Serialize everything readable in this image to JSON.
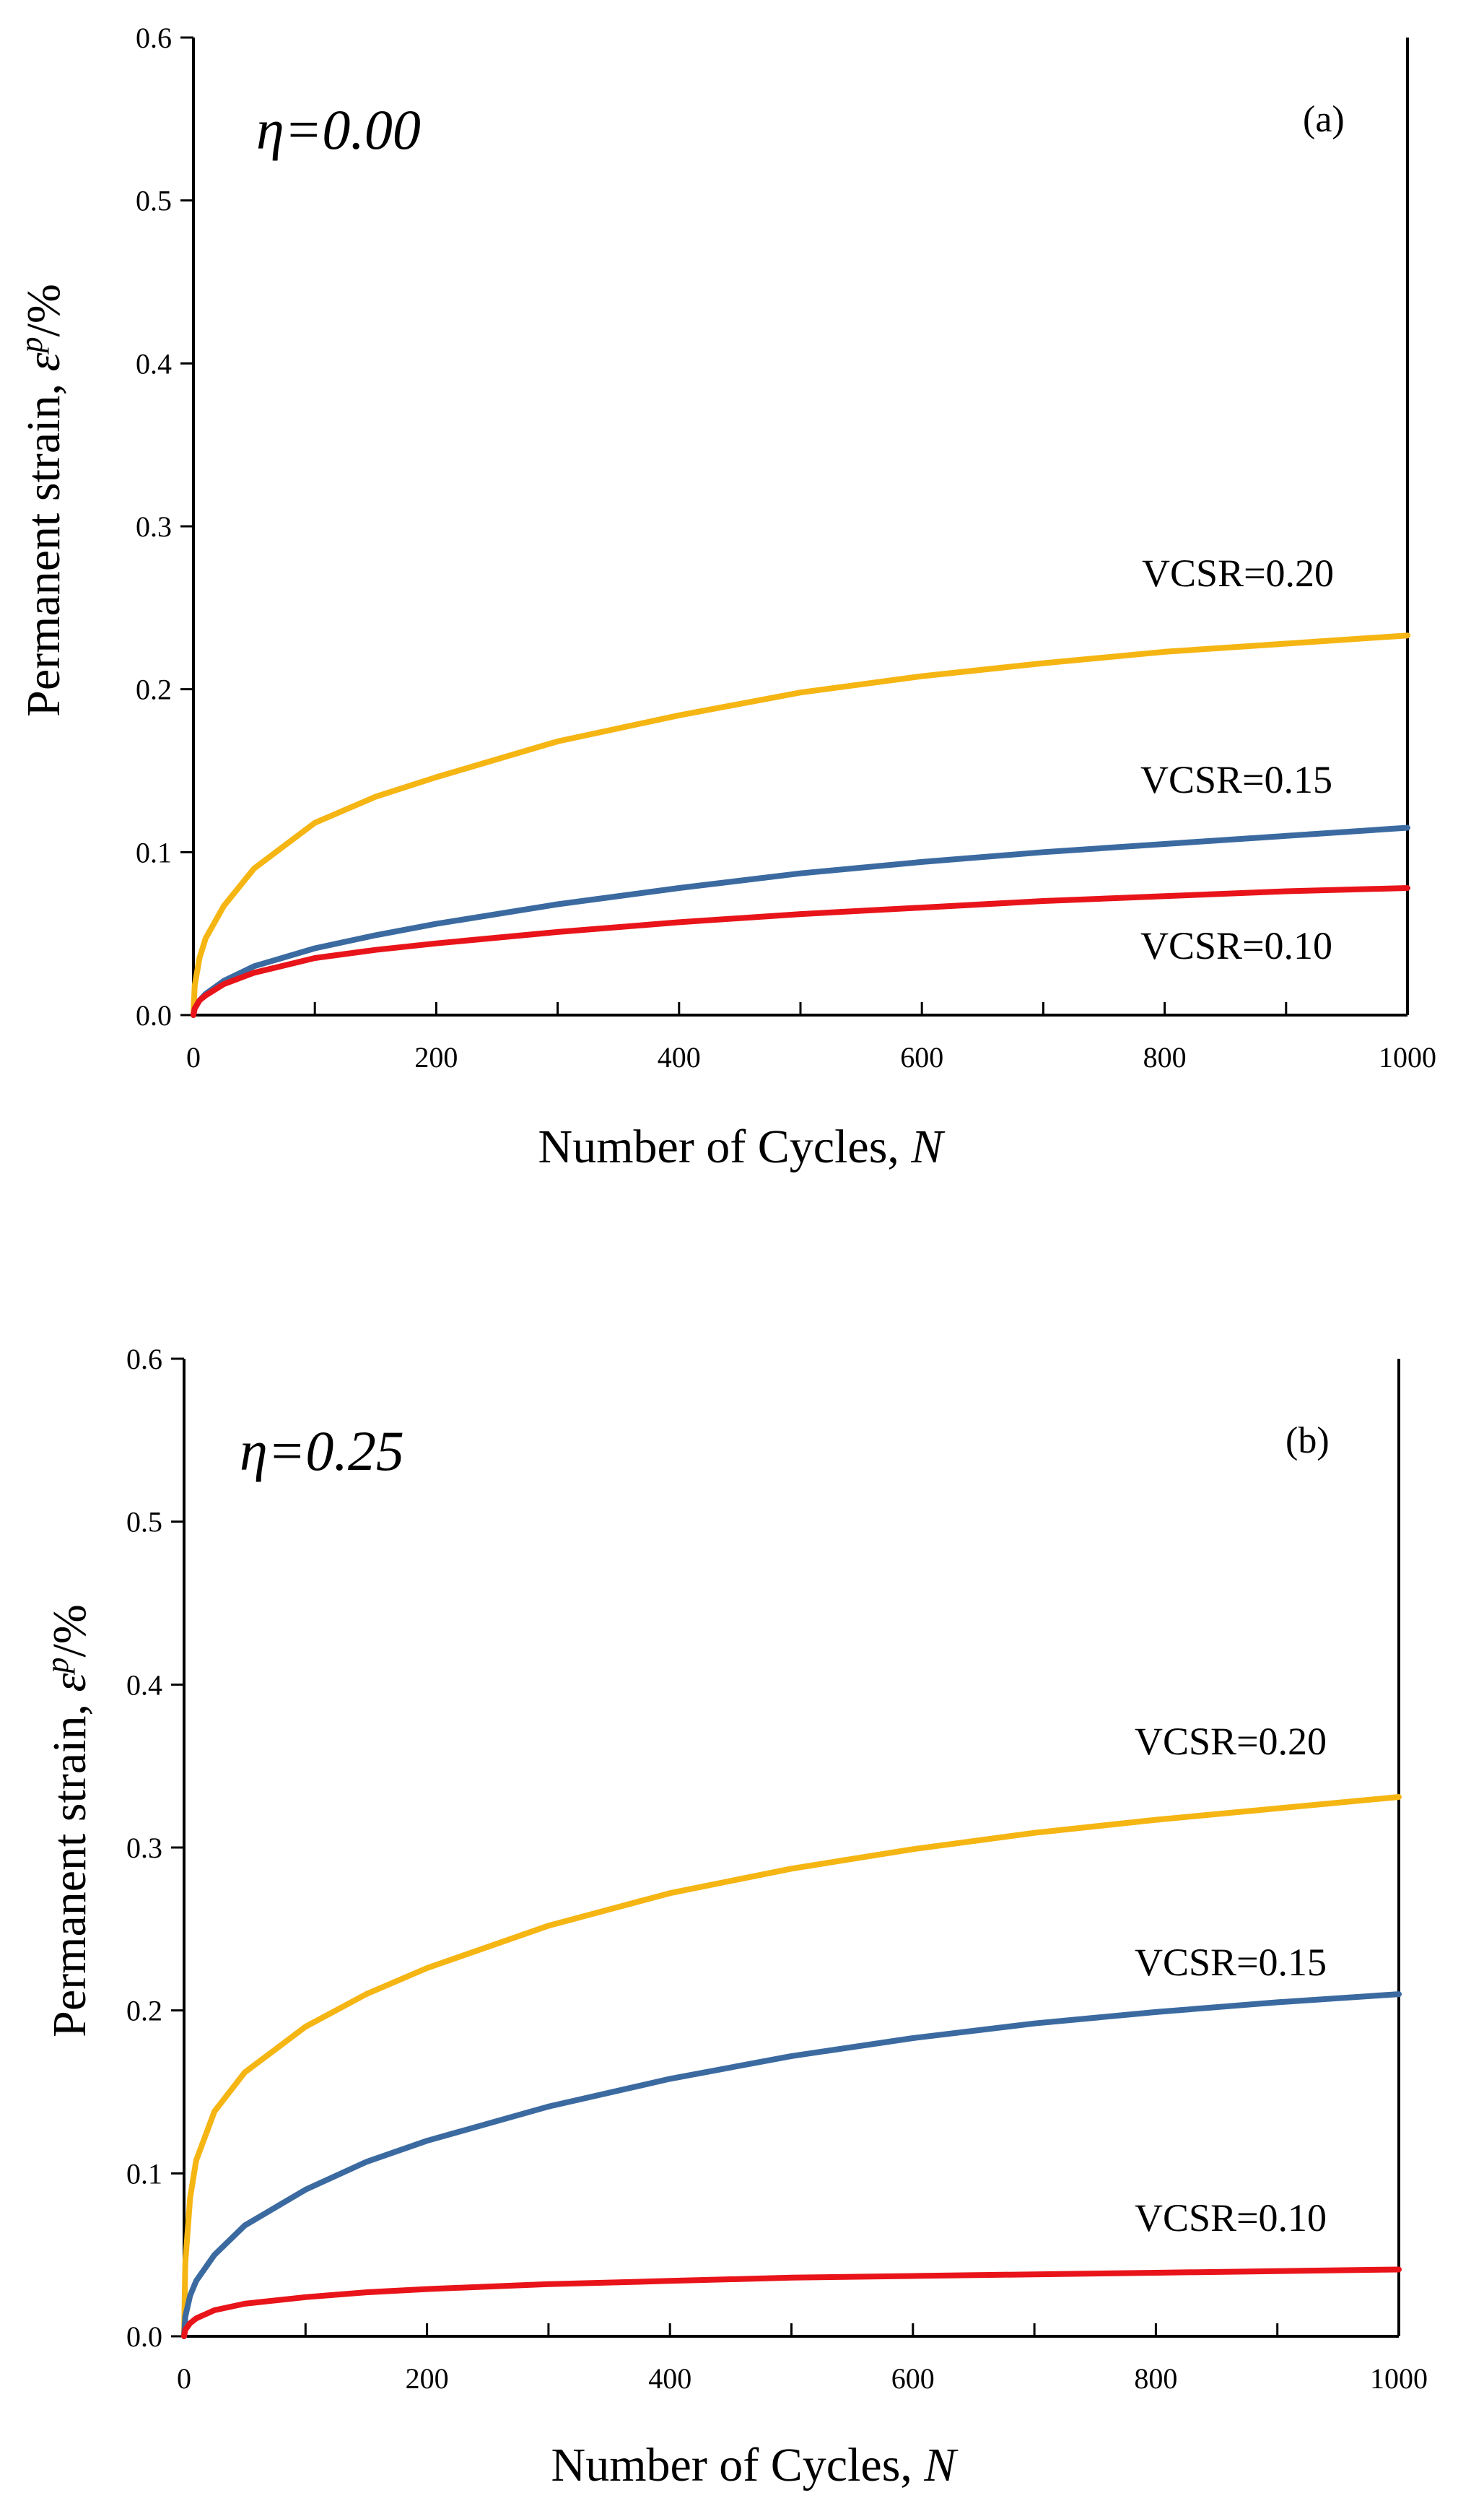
{
  "chart_data": [
    {
      "type": "line",
      "panel": "(a)",
      "annotation": "η=0.00",
      "xlabel": {
        "text": "Number of Cycles, ",
        "var": "N"
      },
      "ylabel": {
        "text": "Permanent strain, ",
        "sym": "ε",
        "sup": "p",
        "tail": "/%"
      },
      "xlim": [
        0,
        1000
      ],
      "ylim": [
        0,
        0.6
      ],
      "xticks": [
        0,
        200,
        400,
        600,
        800,
        1000
      ],
      "xtick_labels": [
        "0",
        "200",
        "400",
        "600",
        "800",
        "1000"
      ],
      "yticks": [
        0,
        0.1,
        0.2,
        0.3,
        0.4,
        0.5,
        0.6
      ],
      "ytick_labels": [
        "0.0",
        "0.1",
        "0.2",
        "0.3",
        "0.4",
        "0.5",
        "0.6"
      ],
      "grid": false,
      "series": [
        {
          "name": "VCSR=0.20",
          "color": "#f5b512",
          "x": [
            0,
            1,
            5,
            10,
            25,
            50,
            100,
            150,
            200,
            300,
            400,
            500,
            600,
            700,
            800,
            900,
            1000
          ],
          "values": [
            0,
            0.018,
            0.035,
            0.047,
            0.067,
            0.09,
            0.118,
            0.134,
            0.146,
            0.168,
            0.184,
            0.198,
            0.208,
            0.216,
            0.223,
            0.228,
            0.233
          ]
        },
        {
          "name": "VCSR=0.15",
          "color": "#3b6aa0",
          "x": [
            0,
            1,
            5,
            10,
            25,
            50,
            100,
            150,
            200,
            300,
            400,
            500,
            600,
            700,
            800,
            900,
            1000
          ],
          "values": [
            0,
            0.004,
            0.009,
            0.013,
            0.021,
            0.03,
            0.041,
            0.049,
            0.056,
            0.068,
            0.078,
            0.087,
            0.094,
            0.1,
            0.105,
            0.11,
            0.115
          ]
        },
        {
          "name": "VCSR=0.10",
          "color": "#e8141a",
          "x": [
            0,
            1,
            5,
            10,
            25,
            50,
            100,
            150,
            200,
            300,
            400,
            500,
            600,
            700,
            800,
            900,
            1000
          ],
          "values": [
            0,
            0.004,
            0.009,
            0.012,
            0.019,
            0.026,
            0.035,
            0.04,
            0.044,
            0.051,
            0.057,
            0.062,
            0.066,
            0.07,
            0.073,
            0.076,
            0.078
          ]
        }
      ]
    },
    {
      "type": "line",
      "panel": "(b)",
      "annotation": "η=0.25",
      "xlabel": {
        "text": "Number of Cycles, ",
        "var": "N"
      },
      "ylabel": {
        "text": "Permanent strain, ",
        "sym": "ε",
        "sup": "p",
        "tail": "/%"
      },
      "xlim": [
        0,
        1000
      ],
      "ylim": [
        0,
        0.6
      ],
      "xticks": [
        0,
        200,
        400,
        600,
        800,
        1000
      ],
      "xtick_labels": [
        "0",
        "200",
        "400",
        "600",
        "800",
        "1000"
      ],
      "yticks": [
        0,
        0.1,
        0.2,
        0.3,
        0.4,
        0.5,
        0.6
      ],
      "ytick_labels": [
        "0.0",
        "0.1",
        "0.2",
        "0.3",
        "0.4",
        "0.5",
        "0.6"
      ],
      "grid": false,
      "series": [
        {
          "name": "VCSR=0.20",
          "color": "#f5b512",
          "x": [
            0,
            1,
            5,
            10,
            25,
            50,
            100,
            150,
            200,
            300,
            400,
            500,
            600,
            700,
            800,
            900,
            1000
          ],
          "values": [
            0,
            0.045,
            0.085,
            0.108,
            0.138,
            0.162,
            0.19,
            0.21,
            0.226,
            0.252,
            0.272,
            0.287,
            0.299,
            0.309,
            0.317,
            0.324,
            0.331
          ]
        },
        {
          "name": "VCSR=0.15",
          "color": "#3b6aa0",
          "x": [
            0,
            1,
            5,
            10,
            25,
            50,
            100,
            150,
            200,
            300,
            400,
            500,
            600,
            700,
            800,
            900,
            1000
          ],
          "values": [
            0,
            0.012,
            0.025,
            0.034,
            0.05,
            0.068,
            0.09,
            0.107,
            0.12,
            0.141,
            0.158,
            0.172,
            0.183,
            0.192,
            0.199,
            0.205,
            0.21
          ]
        },
        {
          "name": "VCSR=0.10",
          "color": "#e8141a",
          "x": [
            0,
            1,
            5,
            10,
            25,
            50,
            100,
            150,
            200,
            300,
            400,
            500,
            600,
            700,
            800,
            900,
            1000
          ],
          "values": [
            0,
            0.004,
            0.008,
            0.011,
            0.016,
            0.02,
            0.024,
            0.027,
            0.029,
            0.032,
            0.034,
            0.036,
            0.037,
            0.038,
            0.039,
            0.04,
            0.041
          ]
        }
      ]
    }
  ]
}
